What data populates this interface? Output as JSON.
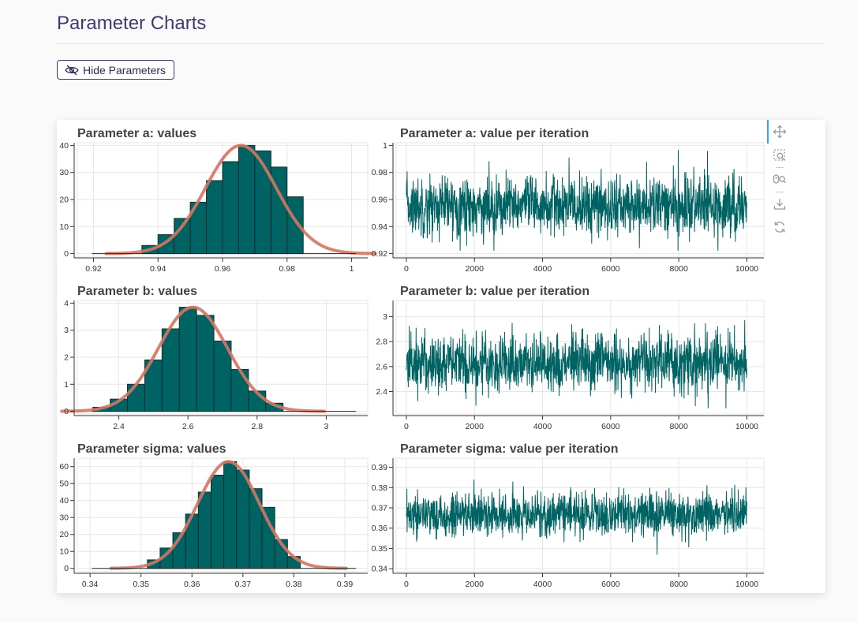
{
  "page": {
    "title": "Parameter Charts",
    "hide_button_label": "Hide Parameters",
    "hide_button_icon": "eye-slash-icon"
  },
  "toolbar": {
    "tools": [
      "pan-icon",
      "box-zoom-icon",
      "wheel-zoom-icon",
      "save-icon",
      "reset-icon"
    ]
  },
  "colors": {
    "bar_fill": "#006363",
    "bar_stroke": "#1b2b2b",
    "density_line": "#d27763",
    "trace_line": "#006363"
  },
  "chart_data": [
    {
      "type": "bar",
      "title": "Parameter a: values",
      "bins": [
        0.9375,
        0.9425,
        0.9475,
        0.9525,
        0.9575,
        0.9625,
        0.9675,
        0.9725,
        0.9775,
        0.9825
      ],
      "bin_width": 0.005,
      "values": [
        3,
        7,
        13,
        19,
        27,
        34,
        40,
        38,
        32,
        21
      ],
      "xlim": [
        0.915,
        1.005
      ],
      "ylim": [
        -1,
        41
      ],
      "xticks": [
        0.92,
        0.94,
        0.96,
        0.98,
        1
      ],
      "xtick_labels": [
        "0.92",
        "0.94",
        "0.96",
        "0.98",
        "1"
      ],
      "yticks": [
        0,
        10,
        20,
        30,
        40
      ],
      "ytick_labels": [
        "0",
        "10",
        "20",
        "30",
        "40"
      ]
    },
    {
      "type": "line",
      "title": "Parameter a: value per iteration",
      "x_range": [
        0,
        10000
      ],
      "mean": 0.955,
      "spread": 0.011,
      "xlim": [
        -300,
        10500
      ],
      "ylim": [
        0.918,
        1.002
      ],
      "xticks": [
        0,
        2000,
        4000,
        6000,
        8000,
        10000
      ],
      "xtick_labels": [
        "0",
        "2000",
        "4000",
        "6000",
        "8000",
        "10000"
      ],
      "yticks": [
        0.92,
        0.94,
        0.96,
        0.98,
        1
      ],
      "ytick_labels": [
        "0.92",
        "0.94",
        "0.96",
        "0.98",
        "1"
      ]
    },
    {
      "type": "bar",
      "title": "Parameter b: values",
      "bins": [
        2.35,
        2.4,
        2.45,
        2.5,
        2.55,
        2.6,
        2.65,
        2.7,
        2.75,
        2.8,
        2.85
      ],
      "bin_width": 0.05,
      "values": [
        0.15,
        0.45,
        1.0,
        1.9,
        3.05,
        3.85,
        3.55,
        2.6,
        1.55,
        0.75,
        0.3
      ],
      "xlim": [
        2.28,
        3.12
      ],
      "ylim": [
        -0.1,
        4.1
      ],
      "xticks": [
        2.4,
        2.6,
        2.8,
        3
      ],
      "xtick_labels": [
        "2.4",
        "2.6",
        "2.8",
        "3"
      ],
      "yticks": [
        0,
        1,
        2,
        3,
        4
      ],
      "ytick_labels": [
        "0",
        "1",
        "2",
        "3",
        "4"
      ]
    },
    {
      "type": "line",
      "title": "Parameter b: value per iteration",
      "x_range": [
        0,
        10000
      ],
      "mean": 2.63,
      "spread": 0.12,
      "xlim": [
        -300,
        10500
      ],
      "ylim": [
        2.22,
        3.13
      ],
      "xticks": [
        0,
        2000,
        4000,
        6000,
        8000,
        10000
      ],
      "xtick_labels": [
        "0",
        "2000",
        "4000",
        "6000",
        "8000",
        "10000"
      ],
      "yticks": [
        2.4,
        2.6,
        2.8,
        3
      ],
      "ytick_labels": [
        "2.4",
        "2.6",
        "2.8",
        "3"
      ]
    },
    {
      "type": "bar",
      "title": "Parameter sigma: values",
      "bins": [
        0.3525,
        0.355,
        0.3575,
        0.36,
        0.3625,
        0.365,
        0.3675,
        0.37,
        0.3725,
        0.375,
        0.3775,
        0.38
      ],
      "bin_width": 0.0025,
      "values": [
        5,
        12,
        21,
        32,
        45,
        55,
        63,
        58,
        47,
        36,
        17,
        7
      ],
      "xlim": [
        0.3375,
        0.3945
      ],
      "ylim": [
        -2,
        65
      ],
      "xticks": [
        0.34,
        0.35,
        0.36,
        0.37,
        0.38,
        0.39
      ],
      "xtick_labels": [
        "0.34",
        "0.35",
        "0.36",
        "0.37",
        "0.38",
        "0.39"
      ],
      "yticks": [
        0,
        10,
        20,
        30,
        40,
        50,
        60
      ],
      "ytick_labels": [
        "0",
        "10",
        "20",
        "30",
        "40",
        "50",
        "60"
      ]
    },
    {
      "type": "line",
      "title": "Parameter sigma: value per iteration",
      "x_range": [
        0,
        10000
      ],
      "mean": 0.3665,
      "spread": 0.0055,
      "xlim": [
        -300,
        10500
      ],
      "ylim": [
        0.3385,
        0.3945
      ],
      "xticks": [
        0,
        2000,
        4000,
        6000,
        8000,
        10000
      ],
      "xtick_labels": [
        "0",
        "2000",
        "4000",
        "6000",
        "8000",
        "10000"
      ],
      "yticks": [
        0.34,
        0.35,
        0.36,
        0.37,
        0.38,
        0.39
      ],
      "ytick_labels": [
        "0.34",
        "0.35",
        "0.36",
        "0.37",
        "0.38",
        "0.39"
      ]
    }
  ]
}
